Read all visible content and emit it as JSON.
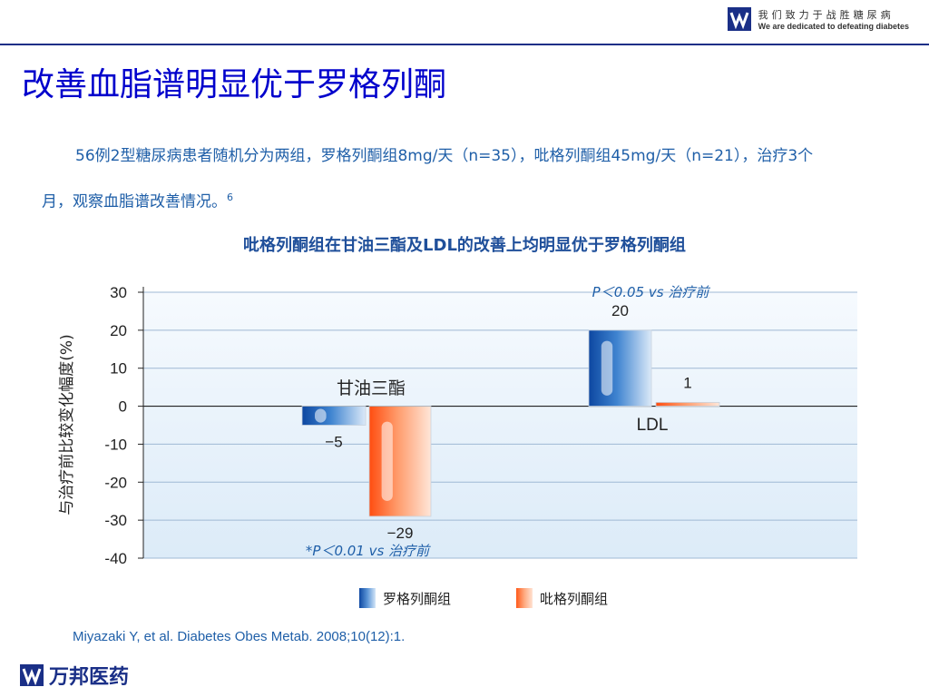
{
  "header": {
    "brand_cn": "我们致力于战胜糖尿病",
    "brand_en": "We are dedicated to defeating diabetes"
  },
  "slide": {
    "title": "改善血脂谱明显优于罗格列酮",
    "description_line1": "56例2型糖尿病患者随机分为两组，罗格列酮组8mg/天（n=35），吡格列酮组45mg/天（n=21），治疗3个",
    "description_line2": "月，观察血脂谱改善情况。",
    "description_ref": "6"
  },
  "chart_data": {
    "type": "bar",
    "title": "吡格列酮组在甘油三酯及LDL的改善上均明显优于罗格列酮组",
    "ylabel": "与治疗前比较变化幅度(%)",
    "ylim": [
      -40,
      30
    ],
    "yticks": [
      "30",
      "20",
      "10",
      "0",
      "-10",
      "-20",
      "-30",
      "-40"
    ],
    "categories": [
      "甘油三酯",
      "LDL"
    ],
    "series": [
      {
        "name": "罗格列酮组",
        "values": [
          -5,
          20
        ],
        "labels": [
          "−5",
          "20"
        ],
        "color": "#1565c0"
      },
      {
        "name": "吡格列酮组",
        "values": [
          -29,
          1
        ],
        "labels": [
          "−29",
          "1"
        ],
        "color": "#ff6a2a"
      }
    ],
    "annotations": [
      "P＜0.05 vs 治疗前",
      "*P＜0.01 vs 治疗前"
    ],
    "grid": true,
    "legend_position": "bottom"
  },
  "citation": "Miyazaki Y, et al. Diabetes Obes Metab. 2008;10(12):1.",
  "footer": {
    "company_name": "万邦医药"
  }
}
